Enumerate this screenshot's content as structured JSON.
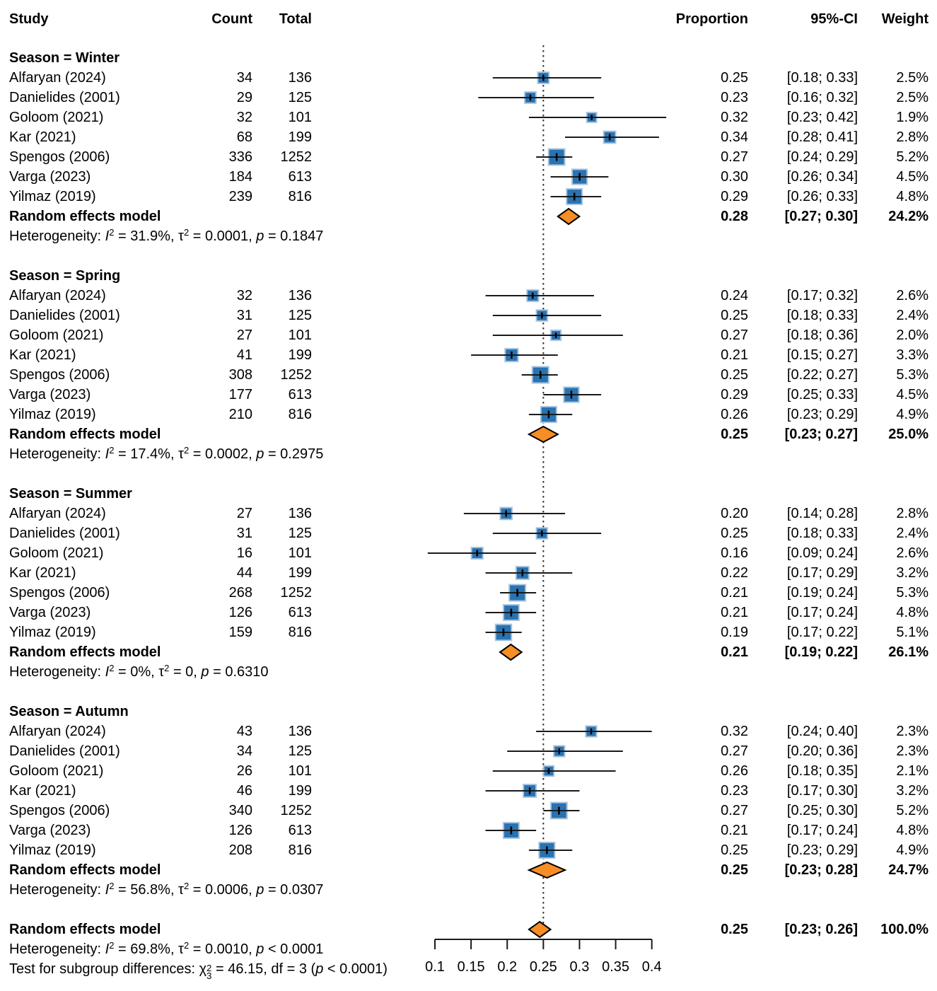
{
  "header": {
    "study": "Study",
    "count": "Count",
    "total": "Total",
    "proportion": "Proportion",
    "ci": "95%-CI",
    "weight": "Weight"
  },
  "labels": {
    "random_effects": "Random effects model",
    "heterogeneity": "Heterogeneity:",
    "i_symbol": "I",
    "tau_symbol": "τ",
    "p_symbol": "p",
    "chi_symbol": "χ",
    "df_symbol": "df",
    "test_subgroup": "Test for subgroup differences:"
  },
  "colors": {
    "square_fill": "#2a73b2",
    "square_border": "#a8c4de",
    "diamond_fill": "#f78d25",
    "diamond_border": "#000000",
    "line": "#1a1a1a",
    "ref_line": "#333333",
    "text": "#000000"
  },
  "chart_data": {
    "type": "forest",
    "x_ticks": [
      "0.1",
      "0.15",
      "0.2",
      "0.25",
      "0.3",
      "0.35",
      "0.4"
    ],
    "xlim": [
      0.1,
      0.4
    ],
    "ref_value": 0.25,
    "subgroups": [
      {
        "label": "Season = Winter",
        "studies": [
          {
            "study": "Alfaryan (2024)",
            "count": "34",
            "total": "136",
            "proportion": "0.25",
            "ci": "[0.18; 0.33]",
            "weight": "2.5%"
          },
          {
            "study": "Danielides (2001)",
            "count": "29",
            "total": "125",
            "proportion": "0.23",
            "ci": "[0.16; 0.32]",
            "weight": "2.5%"
          },
          {
            "study": "Goloom (2021)",
            "count": "32",
            "total": "101",
            "proportion": "0.32",
            "ci": "[0.23; 0.42]",
            "weight": "1.9%"
          },
          {
            "study": "Kar (2021)",
            "count": "68",
            "total": "199",
            "proportion": "0.34",
            "ci": "[0.28; 0.41]",
            "weight": "2.8%"
          },
          {
            "study": "Spengos (2006)",
            "count": "336",
            "total": "1252",
            "proportion": "0.27",
            "ci": "[0.24; 0.29]",
            "weight": "5.2%"
          },
          {
            "study": "Varga (2023)",
            "count": "184",
            "total": "613",
            "proportion": "0.30",
            "ci": "[0.26; 0.34]",
            "weight": "4.5%"
          },
          {
            "study": "Yilmaz (2019)",
            "count": "239",
            "total": "816",
            "proportion": "0.29",
            "ci": "[0.26; 0.33]",
            "weight": "4.8%"
          }
        ],
        "summary": {
          "proportion": "0.28",
          "ci": "[0.27; 0.30]",
          "weight": "24.2%"
        },
        "heterogeneity": {
          "i2": "31.9%",
          "tau2": "0.0001",
          "p_op": "=",
          "p": "0.1847"
        }
      },
      {
        "label": "Season = Spring",
        "studies": [
          {
            "study": "Alfaryan (2024)",
            "count": "32",
            "total": "136",
            "proportion": "0.24",
            "ci": "[0.17; 0.32]",
            "weight": "2.6%"
          },
          {
            "study": "Danielides (2001)",
            "count": "31",
            "total": "125",
            "proportion": "0.25",
            "ci": "[0.18; 0.33]",
            "weight": "2.4%"
          },
          {
            "study": "Goloom (2021)",
            "count": "27",
            "total": "101",
            "proportion": "0.27",
            "ci": "[0.18; 0.36]",
            "weight": "2.0%"
          },
          {
            "study": "Kar (2021)",
            "count": "41",
            "total": "199",
            "proportion": "0.21",
            "ci": "[0.15; 0.27]",
            "weight": "3.3%"
          },
          {
            "study": "Spengos (2006)",
            "count": "308",
            "total": "1252",
            "proportion": "0.25",
            "ci": "[0.22; 0.27]",
            "weight": "5.3%"
          },
          {
            "study": "Varga (2023)",
            "count": "177",
            "total": "613",
            "proportion": "0.29",
            "ci": "[0.25; 0.33]",
            "weight": "4.5%"
          },
          {
            "study": "Yilmaz (2019)",
            "count": "210",
            "total": "816",
            "proportion": "0.26",
            "ci": "[0.23; 0.29]",
            "weight": "4.9%"
          }
        ],
        "summary": {
          "proportion": "0.25",
          "ci": "[0.23; 0.27]",
          "weight": "25.0%"
        },
        "heterogeneity": {
          "i2": "17.4%",
          "tau2": "0.0002",
          "p_op": "=",
          "p": "0.2975"
        }
      },
      {
        "label": "Season = Summer",
        "studies": [
          {
            "study": "Alfaryan (2024)",
            "count": "27",
            "total": "136",
            "proportion": "0.20",
            "ci": "[0.14; 0.28]",
            "weight": "2.8%"
          },
          {
            "study": "Danielides (2001)",
            "count": "31",
            "total": "125",
            "proportion": "0.25",
            "ci": "[0.18; 0.33]",
            "weight": "2.4%"
          },
          {
            "study": "Goloom (2021)",
            "count": "16",
            "total": "101",
            "proportion": "0.16",
            "ci": "[0.09; 0.24]",
            "weight": "2.6%"
          },
          {
            "study": "Kar (2021)",
            "count": "44",
            "total": "199",
            "proportion": "0.22",
            "ci": "[0.17; 0.29]",
            "weight": "3.2%"
          },
          {
            "study": "Spengos (2006)",
            "count": "268",
            "total": "1252",
            "proportion": "0.21",
            "ci": "[0.19; 0.24]",
            "weight": "5.3%"
          },
          {
            "study": "Varga (2023)",
            "count": "126",
            "total": "613",
            "proportion": "0.21",
            "ci": "[0.17; 0.24]",
            "weight": "4.8%"
          },
          {
            "study": "Yilmaz (2019)",
            "count": "159",
            "total": "816",
            "proportion": "0.19",
            "ci": "[0.17; 0.22]",
            "weight": "5.1%"
          }
        ],
        "summary": {
          "proportion": "0.21",
          "ci": "[0.19; 0.22]",
          "weight": "26.1%"
        },
        "heterogeneity": {
          "i2": "0%",
          "tau2": "0",
          "p_op": "=",
          "p": "0.6310"
        }
      },
      {
        "label": "Season = Autumn",
        "studies": [
          {
            "study": "Alfaryan (2024)",
            "count": "43",
            "total": "136",
            "proportion": "0.32",
            "ci": "[0.24; 0.40]",
            "weight": "2.3%"
          },
          {
            "study": "Danielides (2001)",
            "count": "34",
            "total": "125",
            "proportion": "0.27",
            "ci": "[0.20; 0.36]",
            "weight": "2.3%"
          },
          {
            "study": "Goloom (2021)",
            "count": "26",
            "total": "101",
            "proportion": "0.26",
            "ci": "[0.18; 0.35]",
            "weight": "2.1%"
          },
          {
            "study": "Kar (2021)",
            "count": "46",
            "total": "199",
            "proportion": "0.23",
            "ci": "[0.17; 0.30]",
            "weight": "3.2%"
          },
          {
            "study": "Spengos (2006)",
            "count": "340",
            "total": "1252",
            "proportion": "0.27",
            "ci": "[0.25; 0.30]",
            "weight": "5.2%"
          },
          {
            "study": "Varga (2023)",
            "count": "126",
            "total": "613",
            "proportion": "0.21",
            "ci": "[0.17; 0.24]",
            "weight": "4.8%"
          },
          {
            "study": "Yilmaz (2019)",
            "count": "208",
            "total": "816",
            "proportion": "0.25",
            "ci": "[0.23; 0.29]",
            "weight": "4.9%"
          }
        ],
        "summary": {
          "proportion": "0.25",
          "ci": "[0.23; 0.28]",
          "weight": "24.7%"
        },
        "heterogeneity": {
          "i2": "56.8%",
          "tau2": "0.0006",
          "p_op": "=",
          "p": "0.0307"
        }
      }
    ],
    "overall": {
      "summary": {
        "proportion": "0.25",
        "ci": "[0.23; 0.26]",
        "weight": "100.0%"
      },
      "heterogeneity": {
        "i2": "69.8%",
        "tau2": "0.0010",
        "p_op": "<",
        "p": "0.0001"
      },
      "test": {
        "chi_sub": "3",
        "value": "46.15",
        "df": "3",
        "p_op": "<",
        "p": "0.0001"
      }
    }
  }
}
